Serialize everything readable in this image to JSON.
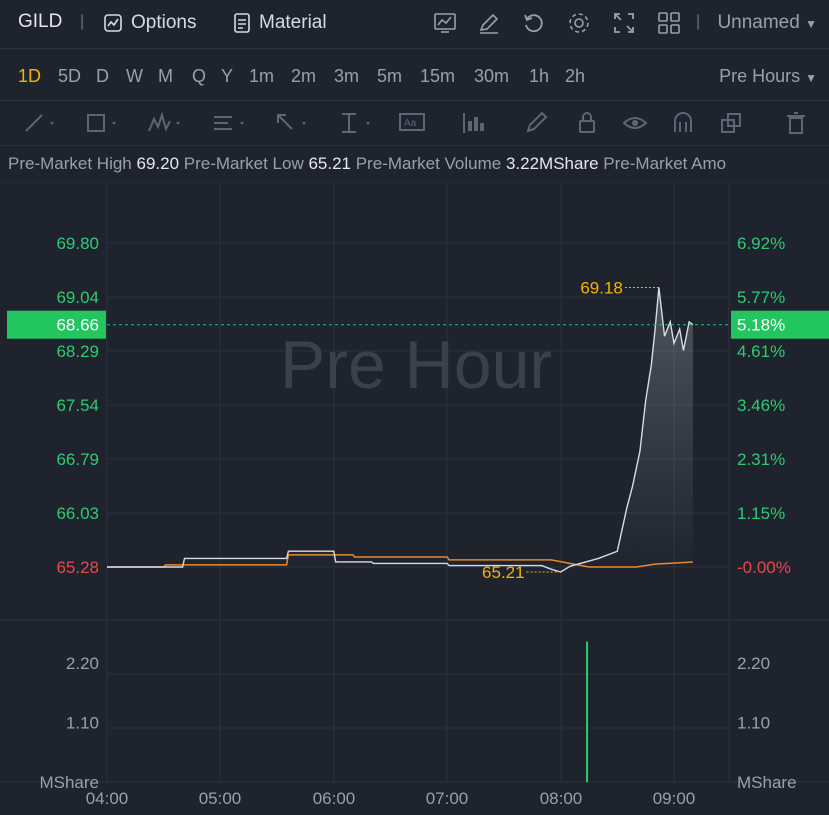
{
  "header": {
    "ticker": "GILD",
    "options_label": "Options",
    "material_label": "Material",
    "layout_name": "Unnamed",
    "icons": [
      "indicator-icon",
      "draw-icon",
      "refresh-icon",
      "settings-icon",
      "fullscreen-icon",
      "grid-layout-icon"
    ]
  },
  "timeframes": [
    "1D",
    "5D",
    "D",
    "W",
    "M",
    "Q",
    "Y",
    "1m",
    "2m",
    "3m",
    "5m",
    "15m",
    "30m",
    "1h",
    "2h"
  ],
  "active_timeframe": "1D",
  "session_selector": "Pre Hours",
  "stats": [
    {
      "label": "Pre-Market High",
      "value": "69.20"
    },
    {
      "label": "Pre-Market Low",
      "value": "65.21"
    },
    {
      "label": "Pre-Market Volume",
      "value": "3.22MShare"
    },
    {
      "label": "Pre-Market Amo",
      "value": ""
    }
  ],
  "colors": {
    "up": "#2ecc71",
    "down": "#e84a4a",
    "accent": "#f5b400",
    "price_line": "#d9dce2",
    "avg_line": "#e88a2e",
    "current_tag": "#22c55e"
  },
  "chart_data": {
    "type": "line",
    "watermark": "Pre Hour",
    "x_ticks": [
      "04:00",
      "05:00",
      "06:00",
      "07:00",
      "08:00",
      "09:00"
    ],
    "price_axis": {
      "ticks": [
        "69.80",
        "69.04",
        "68.29",
        "67.54",
        "66.79",
        "66.03",
        "65.28"
      ],
      "ylim": [
        65.28,
        69.8
      ]
    },
    "pct_axis": [
      "6.92%",
      "5.77%",
      "4.61%",
      "3.46%",
      "2.31%",
      "1.15%",
      "-0.00%"
    ],
    "current_price": "68.66",
    "current_pct": "5.18%",
    "high_label": "69.18",
    "low_label": "65.21",
    "volume_axis": {
      "ticks": [
        "2.20",
        "1.10"
      ],
      "unit": "MShare",
      "ylim": [
        0,
        3.0
      ]
    },
    "series": [
      {
        "values_time": [
          "04:00",
          "04:40",
          "04:41",
          "05:35",
          "05:36",
          "06:00",
          "06:01",
          "06:20",
          "06:21",
          "07:00",
          "07:01",
          "07:50",
          "07:55",
          "08:00",
          "08:05",
          "08:20",
          "08:30",
          "08:35",
          "08:38",
          "08:42",
          "08:45",
          "08:48",
          "08:50",
          "08:52",
          "08:55",
          "08:58",
          "09:00",
          "09:03",
          "09:05",
          "09:08",
          "09:10"
        ],
        "values": [
          65.28,
          65.28,
          65.4,
          65.4,
          65.5,
          65.5,
          65.35,
          65.35,
          65.33,
          65.33,
          65.3,
          65.3,
          65.25,
          65.21,
          65.29,
          65.4,
          65.5,
          66.1,
          66.4,
          66.9,
          67.6,
          68.1,
          68.6,
          69.18,
          68.5,
          68.7,
          68.4,
          68.6,
          68.3,
          68.7,
          68.66
        ]
      },
      {
        "values_time": [
          "04:00",
          "04:30",
          "04:31",
          "05:35",
          "05:36",
          "06:10",
          "06:11",
          "07:00",
          "07:01",
          "07:55",
          "08:15",
          "08:40",
          "08:50",
          "09:10"
        ],
        "values": [
          65.28,
          65.28,
          65.31,
          65.31,
          65.45,
          65.45,
          65.42,
          65.42,
          65.38,
          65.38,
          65.28,
          65.28,
          65.32,
          65.35
        ]
      }
    ],
    "volume": [
      {
        "time": "08:14",
        "value": 2.6
      }
    ]
  }
}
